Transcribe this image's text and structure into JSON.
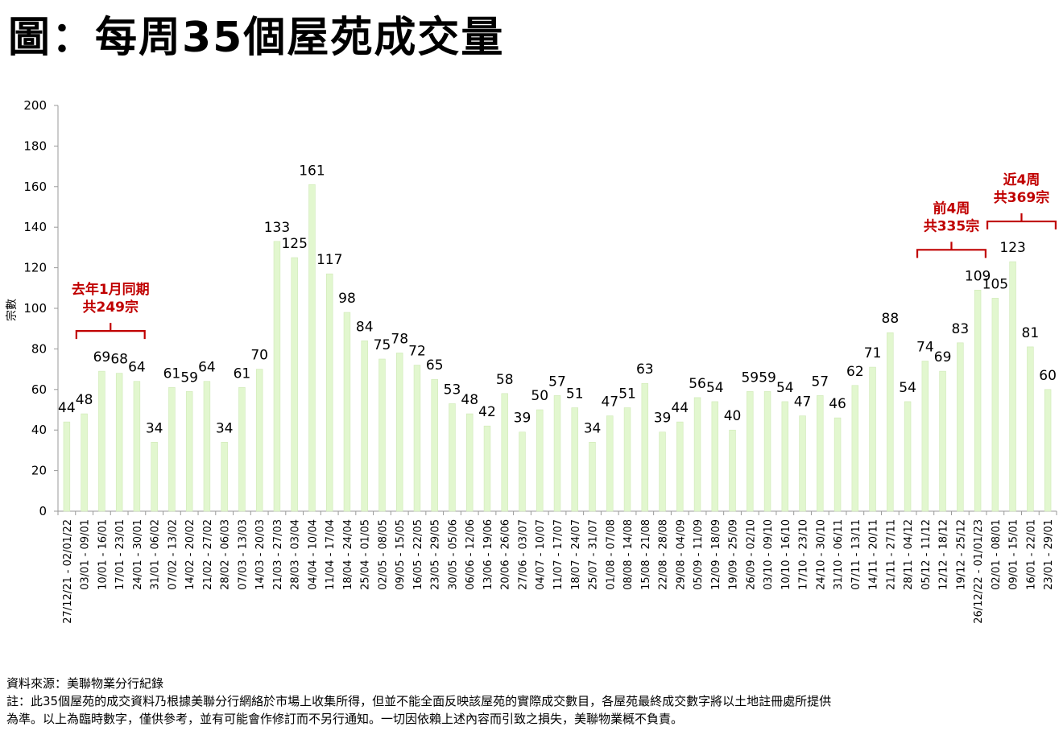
{
  "title": "圖：每周35個屋苑成交量",
  "chart_data": {
    "type": "bar",
    "ylabel": "宗數",
    "ylim": [
      0,
      200
    ],
    "yticks": [
      0,
      20,
      40,
      60,
      80,
      100,
      120,
      140,
      160,
      180,
      200
    ],
    "bar_color": "#e2f7cf",
    "bar_edge": "#cfe9b6",
    "annotation_color": "#c00000",
    "categories": [
      "27/12/21 - 02/01/22",
      "03/01 - 09/01",
      "10/01 - 16/01",
      "17/01 - 23/01",
      "24/01 - 30/01",
      "31/01 - 06/02",
      "07/02 - 13/02",
      "14/02 - 20/02",
      "21/02 - 27/02",
      "28/02 - 06/03",
      "07/03 - 13/03",
      "14/03 - 20/03",
      "21/03 - 27/03",
      "28/03 - 03/04",
      "04/04 - 10/04",
      "11/04 - 17/04",
      "18/04 - 24/04",
      "25/04 - 01/05",
      "02/05 - 08/05",
      "09/05 - 15/05",
      "16/05 - 22/05",
      "23/05 - 29/05",
      "30/05 - 05/06",
      "06/06 - 12/06",
      "13/06 - 19/06",
      "20/06 - 26/06",
      "27/06 - 03/07",
      "04/07 - 10/07",
      "11/07 - 17/07",
      "18/07 - 24/07",
      "25/07 - 31/07",
      "01/08 - 07/08",
      "08/08 - 14/08",
      "15/08 - 21/08",
      "22/08 - 28/08",
      "29/08 - 04/09",
      "05/09 - 11/09",
      "12/09 - 18/09",
      "19/09 - 25/09",
      "26/09 - 02/10",
      "03/10 - 09/10",
      "10/10 - 16/10",
      "17/10 - 23/10",
      "24/10 - 30/10",
      "31/10 - 06/11",
      "07/11 - 13/11",
      "14/11 - 20/11",
      "21/11 - 27/11",
      "28/11 - 04/12",
      "05/12 - 11/12",
      "12/12 - 18/12",
      "19/12 - 25/12",
      "26/12/22 - 01/01/23",
      "02/01 - 08/01",
      "09/01 - 15/01",
      "16/01 - 22/01",
      "23/01 - 29/01"
    ],
    "values": [
      44,
      48,
      69,
      68,
      64,
      34,
      61,
      59,
      64,
      34,
      61,
      70,
      133,
      125,
      161,
      117,
      98,
      84,
      75,
      78,
      72,
      65,
      53,
      48,
      42,
      58,
      39,
      50,
      57,
      51,
      34,
      47,
      51,
      63,
      39,
      44,
      56,
      54,
      40,
      59,
      59,
      54,
      47,
      57,
      46,
      62,
      71,
      88,
      54,
      74,
      69,
      83,
      109,
      105,
      123,
      81,
      60
    ],
    "annotations": [
      {
        "lines": [
          "去年1月同期",
          "共249宗"
        ],
        "from_index": 1,
        "to_index": 4
      },
      {
        "lines": [
          "前4周",
          "共335宗"
        ],
        "from_index": 49,
        "to_index": 52
      },
      {
        "lines": [
          "近4周",
          "共369宗"
        ],
        "from_index": 53,
        "to_index": 56
      }
    ]
  },
  "footer": {
    "source": "資料來源：美聯物業分行紀錄",
    "note_line1": "註：此35個屋苑的成交資料乃根據美聯分行網絡於市場上收集所得，但並不能全面反映該屋苑的實際成交數目，各屋苑最終成交數字將以土地註冊處所提供",
    "note_line2": "為準。以上為臨時數字，僅供參考，並有可能會作修訂而不另行通知。一切因依賴上述內容而引致之損失，美聯物業概不負責。"
  }
}
